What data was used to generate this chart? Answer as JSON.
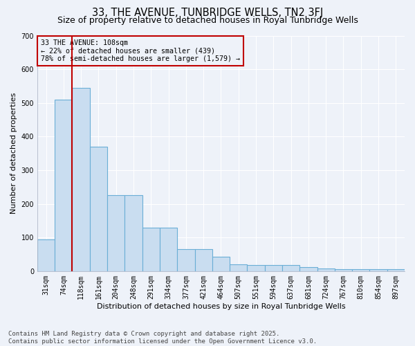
{
  "title": "33, THE AVENUE, TUNBRIDGE WELLS, TN2 3FJ",
  "subtitle": "Size of property relative to detached houses in Royal Tunbridge Wells",
  "xlabel": "Distribution of detached houses by size in Royal Tunbridge Wells",
  "ylabel": "Number of detached properties",
  "categories": [
    "31sqm",
    "74sqm",
    "118sqm",
    "161sqm",
    "204sqm",
    "248sqm",
    "291sqm",
    "334sqm",
    "377sqm",
    "421sqm",
    "464sqm",
    "507sqm",
    "551sqm",
    "594sqm",
    "637sqm",
    "681sqm",
    "724sqm",
    "767sqm",
    "810sqm",
    "854sqm",
    "897sqm"
  ],
  "values": [
    95,
    510,
    545,
    370,
    225,
    225,
    130,
    130,
    65,
    65,
    42,
    20,
    18,
    18,
    18,
    12,
    8,
    5,
    5,
    5,
    5
  ],
  "bar_color": "#c9ddf0",
  "bar_edge_color": "#6aaed6",
  "vline_x": 2.0,
  "vline_color": "#c00000",
  "annotation_text": "33 THE AVENUE: 108sqm\n← 22% of detached houses are smaller (439)\n78% of semi-detached houses are larger (1,579) →",
  "annotation_box_color": "#c00000",
  "ylim": [
    0,
    700
  ],
  "yticks": [
    0,
    100,
    200,
    300,
    400,
    500,
    600,
    700
  ],
  "background_color": "#eef2f9",
  "footnote": "Contains HM Land Registry data © Crown copyright and database right 2025.\nContains public sector information licensed under the Open Government Licence v3.0.",
  "title_fontsize": 10.5,
  "subtitle_fontsize": 9,
  "xlabel_fontsize": 8,
  "ylabel_fontsize": 8,
  "tick_fontsize": 7,
  "footnote_fontsize": 6.5
}
